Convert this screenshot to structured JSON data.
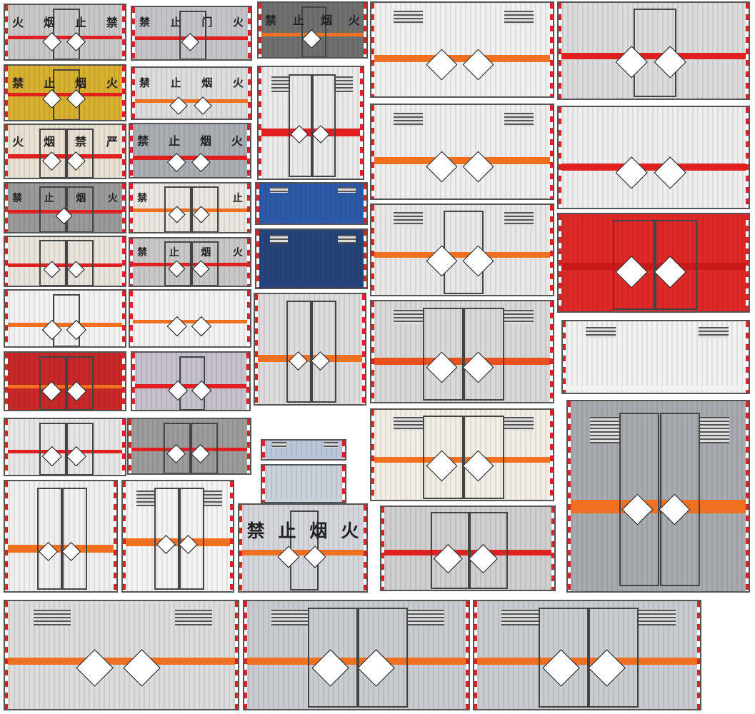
{
  "colors": {
    "orange_stripe": "#f07020",
    "red_stripe": "#e02020",
    "hazard_diamond_border": "#111111"
  },
  "tiles": [
    {
      "bg": "#c8c8c8",
      "stripe": "#e02020",
      "chars": [
        "火",
        "烟",
        "止",
        "禁"
      ],
      "diamonds": 2
    },
    {
      "bg": "#d8b030",
      "stripe": "#e02020",
      "chars": [
        "禁",
        "止",
        "烟",
        "火"
      ],
      "diamonds": 2
    },
    {
      "bg": "#e8e0d0",
      "stripe": "#e02020",
      "chars": [
        "火",
        "烟",
        "禁",
        "严"
      ],
      "diamonds": 2
    },
    {
      "bg": "#9a9a9a",
      "stripe": "#e02020",
      "chars": [
        "禁",
        "止",
        "烟",
        "火"
      ],
      "diamonds": 1
    },
    {
      "bg": "#e8e4dc",
      "stripe": "#e02020",
      "chars": [],
      "diamonds": 2
    },
    {
      "bg": "#f2f2f2",
      "stripe": "#f07020",
      "chars": [],
      "diamonds": 2
    },
    {
      "bg": "#c82828",
      "stripe": "#f07020",
      "chars": [],
      "diamonds": 2
    },
    {
      "bg": "#e6e6e6",
      "stripe": "#e02020",
      "chars": [],
      "diamonds": 2
    },
    {
      "bg": "#f0f0f0",
      "stripe": "#f07020",
      "chars": [],
      "diamonds": 2
    },
    {
      "bg": "#c4c4c8",
      "stripe": "#e02020",
      "chars": [
        "禁",
        "止",
        "门",
        "火"
      ],
      "diamonds": 1
    },
    {
      "bg": "#dcdcdc",
      "stripe": "#f07020",
      "chars": [
        "禁",
        "止",
        "烟",
        "火"
      ],
      "diamonds": 2
    },
    {
      "bg": "#a8aeb4",
      "stripe": "#e02020",
      "chars": [
        "禁",
        "止",
        "烟",
        "火"
      ],
      "diamonds": 2
    },
    {
      "bg": "#eae6e0",
      "stripe": "#f07020",
      "chars": [
        "禁",
        "止"
      ],
      "diamonds": 2
    },
    {
      "bg": "#c8c8c8",
      "stripe": "#e02020",
      "chars": [
        "禁",
        "止",
        "烟",
        "火"
      ],
      "diamonds": 2
    },
    {
      "bg": "#f2f2f2",
      "stripe": "#f07020",
      "chars": [],
      "diamonds": 2
    },
    {
      "bg": "#c4c0cc",
      "stripe": "#e02020",
      "chars": [],
      "diamonds": 2
    },
    {
      "bg": "#9c9c9c",
      "stripe": "#e02020",
      "chars": [],
      "diamonds": 2
    },
    {
      "bg": "#f4f4f4",
      "stripe": "#f07020",
      "chars": [],
      "diamonds": 2
    },
    {
      "bg": "#707070",
      "stripe": "#f07020",
      "chars": [
        "禁",
        "止",
        "烟",
        "火"
      ],
      "diamonds": 1
    },
    {
      "bg": "#eaeaea",
      "stripe": "#e02020",
      "chars": [],
      "diamonds": 2
    },
    {
      "bg": "#2c5aa8",
      "stripe": "#2c5aa8",
      "chars": [],
      "diamonds": 0
    },
    {
      "bg": "#27447a",
      "stripe": "#27447a",
      "chars": [],
      "diamonds": 0
    },
    {
      "bg": "#dcdcdc",
      "stripe": "#f07020",
      "chars": [],
      "diamonds": 2
    },
    {
      "bg": "#b8c8d8",
      "stripe": "#b8c8d8",
      "chars": [],
      "diamonds": 0
    },
    {
      "bg": "#c8d0d8",
      "stripe": "#c8d0d8",
      "chars": [],
      "diamonds": 0
    },
    {
      "bg": "#d4d4dc",
      "stripe": "#f07020",
      "chars": [
        "禁",
        "止",
        "烟",
        "火"
      ],
      "diamonds": 2
    },
    {
      "bg": "#f0f0f0",
      "stripe": "#f07020",
      "chars": [],
      "diamonds": 2
    },
    {
      "bg": "#eeeeee",
      "stripe": "#f07020",
      "chars": [],
      "diamonds": 2
    },
    {
      "bg": "#e8e8e8",
      "stripe": "#f07020",
      "chars": [],
      "diamonds": 2
    },
    {
      "bg": "#d8d8d8",
      "stripe": "#e85020",
      "chars": [],
      "diamonds": 2
    },
    {
      "bg": "#f2eee6",
      "stripe": "#f07020",
      "chars": [],
      "diamonds": 2
    },
    {
      "bg": "#cfcfcf",
      "stripe": "#e02020",
      "chars": [],
      "diamonds": 2
    },
    {
      "bg": "#dcdcdc",
      "stripe": "#e02020",
      "chars": [],
      "diamonds": 2
    },
    {
      "bg": "#eeeeee",
      "stripe": "#e02020",
      "chars": [],
      "diamonds": 2
    },
    {
      "bg": "#e02828",
      "stripe": "#c81818",
      "chars": [],
      "diamonds": 2
    },
    {
      "bg": "#f2f2f2",
      "stripe": "#f2f2f2",
      "chars": [],
      "diamonds": 0
    },
    {
      "bg": "#a8acb0",
      "stripe": "#f07020",
      "chars": [],
      "diamonds": 2
    },
    {
      "bg": "#dcdcdc",
      "stripe": "#f07020",
      "chars": [],
      "diamonds": 2
    },
    {
      "bg": "#c8ccd0",
      "stripe": "#f07020",
      "chars": [],
      "diamonds": 2
    },
    {
      "bg": "#c8ccd0",
      "stripe": "#f07020",
      "chars": [],
      "diamonds": 2
    }
  ]
}
